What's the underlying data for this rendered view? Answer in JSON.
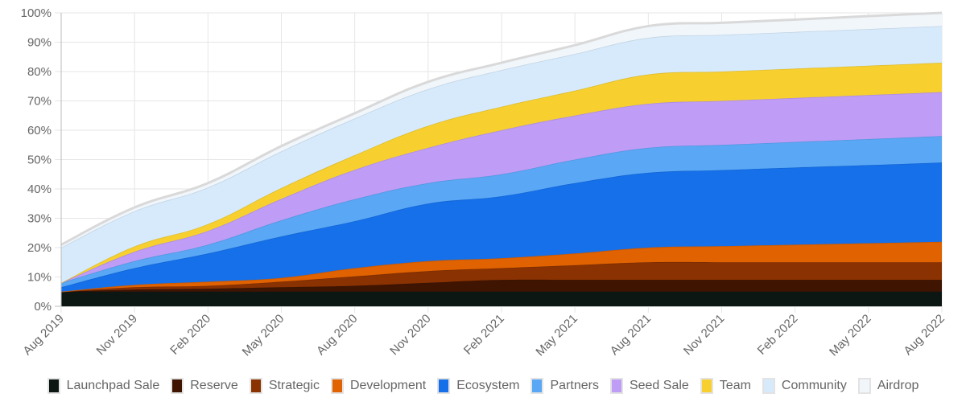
{
  "chart_data": {
    "type": "area",
    "stacked": true,
    "x": [
      "Aug 2019",
      "Nov 2019",
      "Feb 2020",
      "May 2020",
      "Aug 2020",
      "Nov 2020",
      "Feb 2021",
      "May 2021",
      "Aug 2021",
      "Nov 2021",
      "Feb 2022",
      "May 2022",
      "Aug 2022"
    ],
    "x_tick_labels": [
      "Aug 2019",
      "Nov 2019",
      "Feb 2020",
      "May 2020",
      "Aug 2020",
      "Nov 2020",
      "Feb 2021",
      "May 2021",
      "Aug 2021",
      "Nov 2021",
      "Feb 2022",
      "May 2022",
      "Aug 2022"
    ],
    "y_tick_labels": [
      "0%",
      "10%",
      "20%",
      "30%",
      "40%",
      "50%",
      "60%",
      "70%",
      "80%",
      "90%",
      "100%"
    ],
    "ylim": [
      0,
      100
    ],
    "y_unit": "%",
    "grid": true,
    "legend_position": "bottom",
    "series": [
      {
        "name": "Launchpad Sale",
        "color": "#0c1713",
        "values": [
          5,
          5,
          5,
          5,
          5,
          5,
          5,
          5,
          5,
          5,
          5,
          5,
          5
        ]
      },
      {
        "name": "Reserve",
        "color": "#3f1502",
        "values": [
          0,
          0.7,
          1,
          1.5,
          2,
          3,
          4,
          4,
          4,
          4,
          4,
          4,
          4
        ]
      },
      {
        "name": "Strategic",
        "color": "#8a3202",
        "values": [
          0,
          0.8,
          1,
          1.9,
          3.2,
          4,
          4,
          5,
          6,
          6,
          6,
          6,
          6
        ]
      },
      {
        "name": "Development",
        "color": "#e06200",
        "values": [
          0,
          0.8,
          1.4,
          1.3,
          2.8,
          3.4,
          3.4,
          4,
          5,
          5.5,
          6,
          6.5,
          7
        ]
      },
      {
        "name": "Ecosystem",
        "color": "#1570ea",
        "values": [
          1.5,
          5.7,
          9.6,
          14.1,
          16,
          19.6,
          21.1,
          24,
          25.5,
          25.9,
          26.3,
          26.6,
          27
        ]
      },
      {
        "name": "Partners",
        "color": "#5aa7f5",
        "values": [
          1.5,
          2.4,
          3,
          5.5,
          7.5,
          7,
          7.5,
          8,
          8.5,
          8.6,
          8.7,
          8.9,
          9
        ]
      },
      {
        "name": "Seed Sale",
        "color": "#bf9cf5",
        "values": [
          0,
          3.2,
          4.7,
          7.3,
          10,
          12,
          15,
          15,
          15,
          15,
          15,
          15,
          15
        ]
      },
      {
        "name": "Team",
        "color": "#f7d030",
        "values": [
          0,
          1.8,
          2.3,
          3.7,
          5,
          7.5,
          8,
          8.5,
          10,
          10,
          10,
          10,
          10
        ]
      },
      {
        "name": "Community",
        "color": "#d6eafb",
        "values": [
          12,
          12,
          12.5,
          12.5,
          12.5,
          12.5,
          12.5,
          12.5,
          12.5,
          12.5,
          12.5,
          12.5,
          12.5
        ]
      },
      {
        "name": "Airdrop",
        "color": "#f1f6fb",
        "values": [
          1,
          1.3,
          1.5,
          1.8,
          1.8,
          2.5,
          2.5,
          3,
          4,
          4.1,
          4.2,
          4.4,
          4.5
        ]
      }
    ]
  }
}
